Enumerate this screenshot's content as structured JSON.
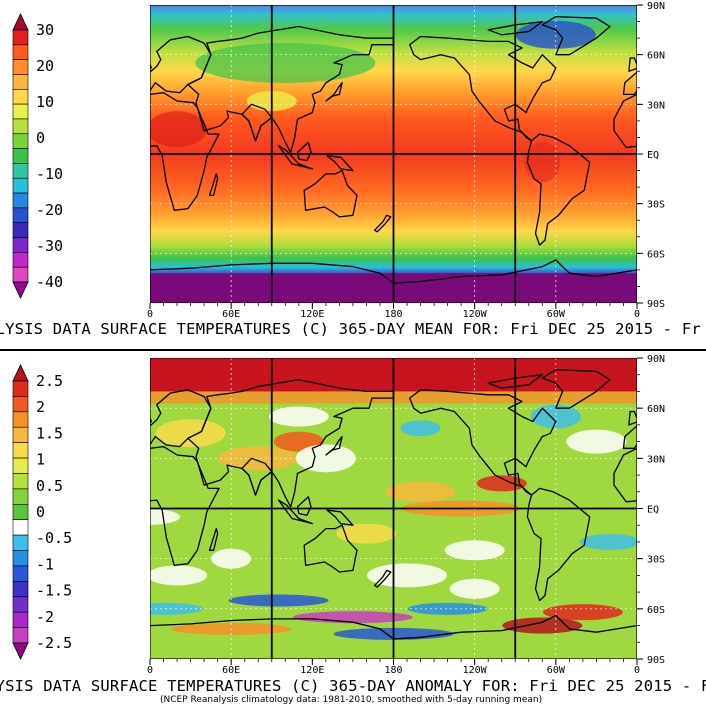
{
  "top_panel": {
    "caption": "ALYSIS DATA SURFACE TEMPERATURES (C) 365-DAY MEAN FOR: Fri DEC 25 2015 - Fr",
    "colorbar": {
      "labels": [
        "30",
        "20",
        "10",
        "0",
        "-10",
        "-20",
        "-30",
        "-40"
      ],
      "colors": [
        "#a00a2c",
        "#e0211e",
        "#ff5a1e",
        "#ff8c28",
        "#ffb43c",
        "#ffd84a",
        "#ecf04a",
        "#b8e03c",
        "#7cd23c",
        "#3cc24a",
        "#2ec8a0",
        "#28c0d8",
        "#2888e0",
        "#2850d0",
        "#3c28c0",
        "#7a28c8",
        "#c028c8",
        "#e048c0",
        "#900a8c"
      ]
    },
    "lon_labels": [
      "0",
      "60E",
      "120E",
      "180",
      "120W",
      "60W",
      "0"
    ],
    "lat_labels": [
      "90N",
      "60N",
      "30N",
      "EQ",
      "30S",
      "60S",
      "90S"
    ]
  },
  "bottom_panel": {
    "caption": "LYSIS DATA SURFACE TEMPERATURES (C) 365-DAY ANOMALY FOR: Fri DEC 25 2015 - F",
    "subcaption": "(NCEP Reanalysis climatology data: 1981-2010, smoothed with 5-day running mean)",
    "colorbar": {
      "labels": [
        "2.5",
        "2",
        "1.5",
        "1",
        "0.5",
        "0",
        "-0.5",
        "-1",
        "-1.5",
        "-2",
        "-2.5"
      ],
      "colors": [
        "#b4141e",
        "#e0281e",
        "#f05a1e",
        "#f89028",
        "#f8b83c",
        "#f8dc4a",
        "#e8ec4a",
        "#b8e03c",
        "#84d23c",
        "#5cc43c",
        "#ffffff",
        "#40c0e8",
        "#2890e0",
        "#2858d8",
        "#3c30c8",
        "#7030c8",
        "#a828c8",
        "#c840c0",
        "#880a80"
      ]
    },
    "lon_labels": [
      "0",
      "60E",
      "120E",
      "180",
      "120W",
      "60W",
      "0"
    ],
    "lat_labels": [
      "90N",
      "60N",
      "30N",
      "EQ",
      "30S",
      "60S",
      "90S"
    ]
  }
}
